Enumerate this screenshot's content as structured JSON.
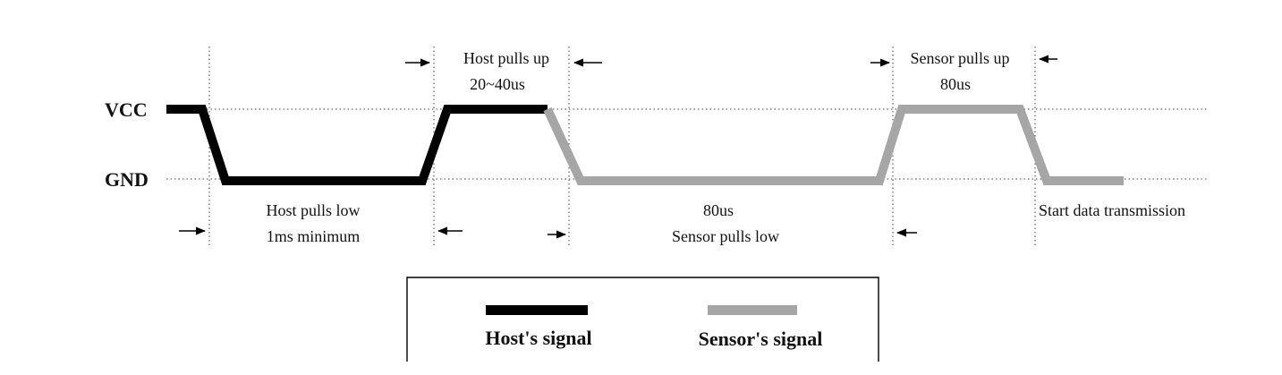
{
  "diagram": {
    "rails": {
      "vcc": "VCC",
      "gnd": "GND"
    },
    "phases": {
      "host_low": {
        "line1": "Host pulls low",
        "line2": "1ms minimum"
      },
      "host_up": {
        "line1": "Host pulls up",
        "line2": "20~40us"
      },
      "sensor_low": {
        "line1": "80us",
        "line2": "Sensor pulls low"
      },
      "sensor_up": {
        "line1": "Sensor pulls up",
        "line2": "80us"
      },
      "data_start": "Start data transmission"
    },
    "legend": {
      "host_label": "Host's signal",
      "sensor_label": "Sensor's signal"
    },
    "colors": {
      "host_signal": "#000000",
      "sensor_signal": "#a6a6a6",
      "guide_lines": "#444444"
    }
  }
}
